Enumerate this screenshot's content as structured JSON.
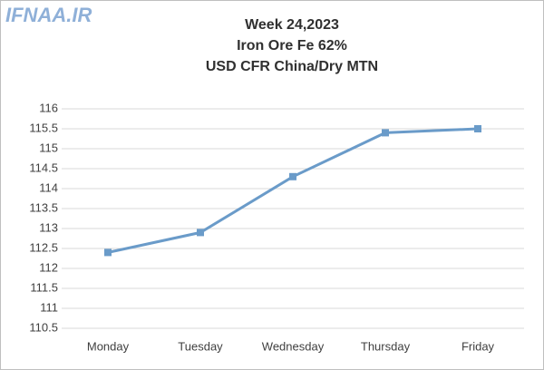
{
  "chart_data": {
    "type": "line",
    "watermark": "IFNAA.IR",
    "title": [
      "Week 24,2023",
      "Iron Ore Fe 62%",
      "USD CFR China/Dry MTN"
    ],
    "categories": [
      "Monday",
      "Tuesday",
      "Wednesday",
      "Thursday",
      "Friday"
    ],
    "values": [
      112.4,
      112.9,
      114.3,
      115.4,
      115.5
    ],
    "color": "#6a9bc9",
    "ylim": [
      110.5,
      116
    ],
    "yticks": [
      110.5,
      111,
      111.5,
      112,
      112.5,
      113,
      113.5,
      114,
      114.5,
      115,
      115.5,
      116
    ],
    "grid": true
  }
}
